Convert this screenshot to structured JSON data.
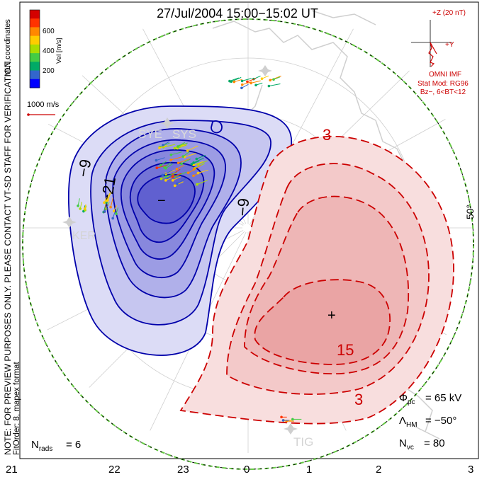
{
  "title": "27/Jul/2004  15:00−15:02  UT",
  "coords_label": "MLT coordinates",
  "velocity_scale": {
    "label": "Vel [m/s]",
    "ticks": [
      "600",
      "400",
      "200"
    ],
    "colors": [
      "#d40000",
      "#ff3300",
      "#ff8800",
      "#ffcc00",
      "#aadd00",
      "#44cc44",
      "#00aa66",
      "#3366cc",
      "#0000ff"
    ]
  },
  "vector_scale_label": "1000 m/s",
  "note_text": "NOTE: FOR PREVIEW PURPOSES ONLY. PLEASE CONTACT VT-SD STAFF FOR VERIFICATION.",
  "fit_text": "FitOrder: 8, mapex format",
  "imf": {
    "z_label": "+Z (20 nT)",
    "y_label": "+Y",
    "omni_label": "OMNI IMF",
    "stat_mod": "Stat Mod: RG96",
    "bz_label": "Bz−, 6<BT<12"
  },
  "stations": [
    "SYE",
    "SYS",
    "KER",
    "TIG"
  ],
  "contour_labels": {
    "neg_outer": "−9",
    "neg_inner": "−21",
    "neg_right": "−9",
    "pos_top": "3",
    "pos_mid": "15",
    "pos_bottom": "3",
    "min_marker": "−",
    "max_marker": "+"
  },
  "latitude_label": "50°",
  "mlt_ticks": [
    "21",
    "22",
    "23",
    "0",
    "1",
    "2",
    "3"
  ],
  "stats": {
    "phi_pc": "= 65 kV",
    "lambda_hm": "= −50°",
    "n_vc": "= 80",
    "n_rads": "= 6"
  },
  "colors": {
    "negative_fill": "#8888ee",
    "positive_fill": "#ee8888",
    "negative_line": "#0000aa",
    "positive_line": "#cc0000"
  }
}
